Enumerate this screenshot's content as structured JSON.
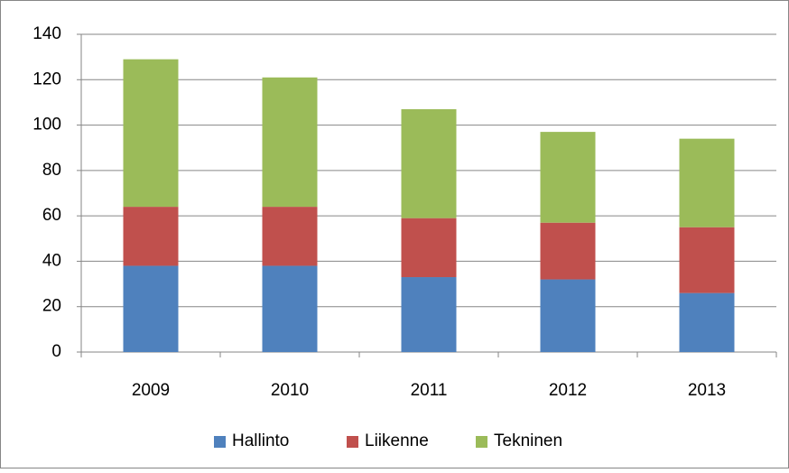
{
  "chart_data": {
    "type": "bar",
    "stacked": true,
    "categories": [
      "2009",
      "2010",
      "2011",
      "2012",
      "2013"
    ],
    "series": [
      {
        "name": "Hallinto",
        "color": "#4f81bd",
        "values": [
          38,
          38,
          33,
          32,
          26
        ]
      },
      {
        "name": "Liikenne",
        "color": "#c0504d",
        "values": [
          26,
          26,
          26,
          25,
          29
        ]
      },
      {
        "name": "Tekninen",
        "color": "#9bbb59",
        "values": [
          65,
          57,
          48,
          40,
          39
        ]
      }
    ],
    "ylim": [
      0,
      140
    ],
    "yticks": [
      0,
      20,
      40,
      60,
      80,
      100,
      120,
      140
    ],
    "grid": true,
    "legend": "bottom"
  }
}
